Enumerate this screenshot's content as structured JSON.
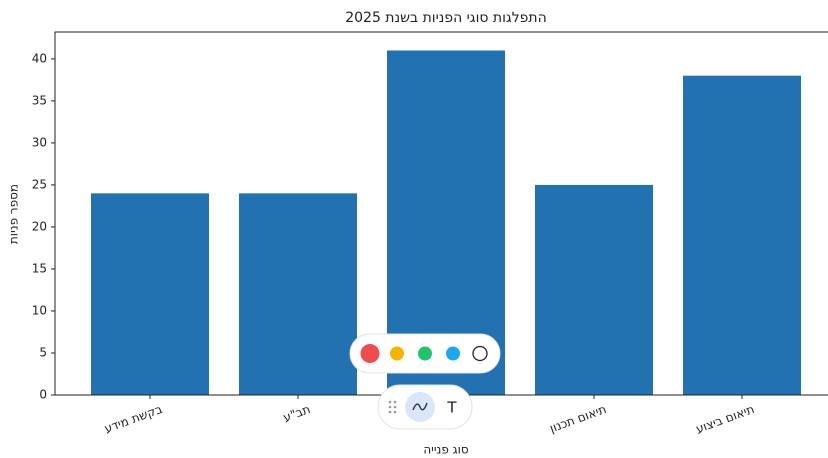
{
  "chart_data": {
    "type": "bar",
    "title": "התפלגות סוגי הפניות בשנת 2025",
    "x_label": "סוג פנייה",
    "y_label": "מספר פניות",
    "categories": [
      "בקשת מידע",
      "תב\"ע",
      null,
      "תיאום תכנון",
      "תיאום ביצוע"
    ],
    "values": [
      24,
      24,
      41,
      25,
      38
    ],
    "color": "#2271b1",
    "ylim": [
      0,
      43.2
    ],
    "yticks": [
      0,
      5,
      10,
      15,
      20,
      25,
      30,
      35,
      40
    ],
    "grid": false
  },
  "toolbar": {
    "text_button": "T"
  }
}
